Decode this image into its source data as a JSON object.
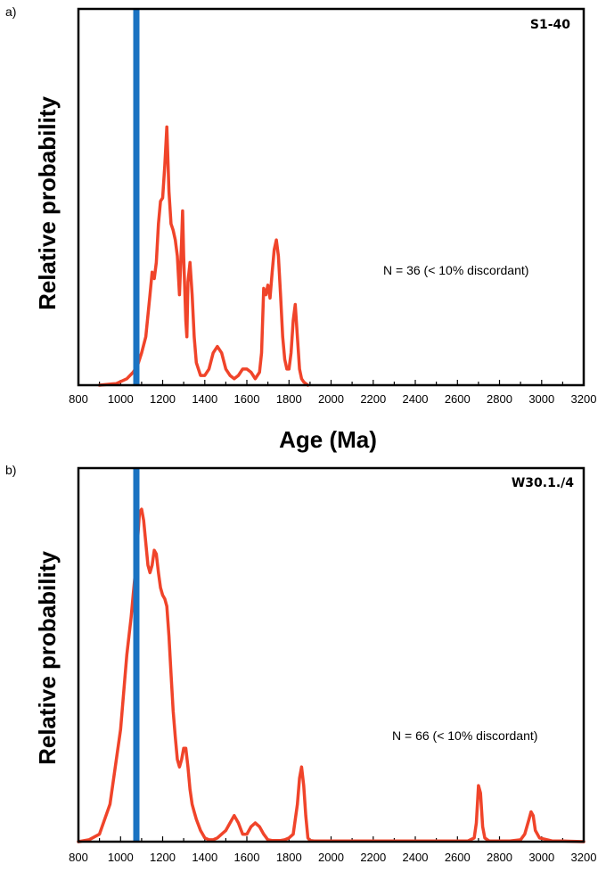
{
  "chart_data": [
    {
      "type": "line",
      "panel_label": "a)",
      "sample_label": "S1-40",
      "annotation": "N = 36 (< 10% discordant)",
      "ylabel": "Relative probability",
      "xlabel": "Age (Ma)",
      "xlim": [
        800,
        3200
      ],
      "ylim": [
        0,
        1
      ],
      "x_ticks": [
        "800",
        "1000",
        "1200",
        "1400",
        "1600",
        "1800",
        "2000",
        "2200",
        "2400",
        "2600",
        "2800",
        "3000",
        "3200"
      ],
      "reference_line_x": 1075,
      "colors": {
        "curve": "#f0442a",
        "reference": "#1a73c2",
        "frame": "#000000"
      },
      "series": [
        {
          "x": [
            900,
            980,
            1030,
            1060,
            1080,
            1100,
            1120,
            1140,
            1150,
            1160,
            1170,
            1180,
            1190,
            1200,
            1210,
            1220,
            1230,
            1240,
            1250,
            1260,
            1270,
            1280,
            1290,
            1295,
            1300,
            1305,
            1310,
            1315,
            1320,
            1330,
            1340,
            1350,
            1360,
            1380,
            1400,
            1420,
            1440,
            1460,
            1480,
            1500,
            1520,
            1540,
            1560,
            1580,
            1600,
            1620,
            1640,
            1660,
            1670,
            1680,
            1690,
            1700,
            1710,
            1720,
            1730,
            1740,
            1750,
            1760,
            1770,
            1780,
            1790,
            1800,
            1810,
            1820,
            1830,
            1840,
            1850,
            1860,
            1870,
            1880,
            1890
          ],
          "y": [
            0,
            0.005,
            0.02,
            0.04,
            0.06,
            0.1,
            0.15,
            0.28,
            0.35,
            0.33,
            0.38,
            0.5,
            0.57,
            0.58,
            0.68,
            0.8,
            0.6,
            0.5,
            0.48,
            0.45,
            0.4,
            0.28,
            0.45,
            0.54,
            0.4,
            0.3,
            0.2,
            0.15,
            0.32,
            0.38,
            0.28,
            0.15,
            0.07,
            0.03,
            0.03,
            0.05,
            0.1,
            0.12,
            0.1,
            0.05,
            0.03,
            0.02,
            0.03,
            0.05,
            0.05,
            0.04,
            0.02,
            0.04,
            0.1,
            0.3,
            0.28,
            0.31,
            0.27,
            0.35,
            0.42,
            0.45,
            0.4,
            0.28,
            0.15,
            0.08,
            0.05,
            0.05,
            0.1,
            0.2,
            0.25,
            0.15,
            0.05,
            0.02,
            0.01,
            0.005,
            0
          ]
        }
      ]
    },
    {
      "type": "line",
      "panel_label": "b)",
      "sample_label": "W30.1./4",
      "annotation": "N = 66 (< 10% discordant)",
      "ylabel": "Relative probability",
      "xlabel": "",
      "xlim": [
        800,
        3200
      ],
      "ylim": [
        0,
        1
      ],
      "x_ticks": [
        "800",
        "1000",
        "1200",
        "1400",
        "1600",
        "1800",
        "2000",
        "2200",
        "2400",
        "2600",
        "2800",
        "3000",
        "3200"
      ],
      "reference_line_x": 1075,
      "colors": {
        "curve": "#f0442a",
        "reference": "#1a73c2",
        "frame": "#000000"
      },
      "series": [
        {
          "x": [
            800,
            850,
            900,
            950,
            1000,
            1030,
            1050,
            1060,
            1070,
            1080,
            1090,
            1100,
            1110,
            1120,
            1130,
            1140,
            1150,
            1160,
            1170,
            1180,
            1190,
            1200,
            1210,
            1220,
            1230,
            1240,
            1250,
            1260,
            1270,
            1280,
            1290,
            1300,
            1310,
            1320,
            1330,
            1340,
            1350,
            1360,
            1380,
            1400,
            1420,
            1440,
            1460,
            1480,
            1500,
            1520,
            1540,
            1560,
            1580,
            1600,
            1620,
            1640,
            1660,
            1680,
            1700,
            1720,
            1740,
            1760,
            1780,
            1800,
            1820,
            1840,
            1850,
            1860,
            1870,
            1880,
            1890,
            1900,
            1920,
            1950,
            2000,
            2200,
            2400,
            2600,
            2650,
            2680,
            2690,
            2700,
            2710,
            2720,
            2730,
            2750,
            2800,
            2850,
            2900,
            2920,
            2940,
            2950,
            2960,
            2970,
            2990,
            3050,
            3100,
            3200
          ],
          "y": [
            0,
            0.005,
            0.02,
            0.1,
            0.3,
            0.5,
            0.6,
            0.66,
            0.72,
            0.8,
            0.88,
            0.89,
            0.86,
            0.8,
            0.74,
            0.72,
            0.74,
            0.78,
            0.77,
            0.72,
            0.68,
            0.66,
            0.65,
            0.63,
            0.55,
            0.45,
            0.35,
            0.28,
            0.22,
            0.2,
            0.22,
            0.25,
            0.25,
            0.2,
            0.14,
            0.1,
            0.08,
            0.06,
            0.03,
            0.01,
            0.005,
            0.005,
            0.01,
            0.02,
            0.03,
            0.05,
            0.07,
            0.05,
            0.02,
            0.02,
            0.04,
            0.05,
            0.04,
            0.02,
            0.005,
            0.003,
            0.003,
            0.003,
            0.005,
            0.01,
            0.02,
            0.1,
            0.17,
            0.2,
            0.15,
            0.07,
            0.01,
            0.003,
            0.002,
            0.002,
            0.002,
            0.002,
            0.002,
            0.002,
            0.002,
            0.01,
            0.05,
            0.15,
            0.13,
            0.04,
            0.01,
            0.002,
            0.002,
            0.002,
            0.005,
            0.02,
            0.06,
            0.08,
            0.07,
            0.03,
            0.01,
            0.002,
            0.002,
            0
          ]
        }
      ]
    }
  ]
}
